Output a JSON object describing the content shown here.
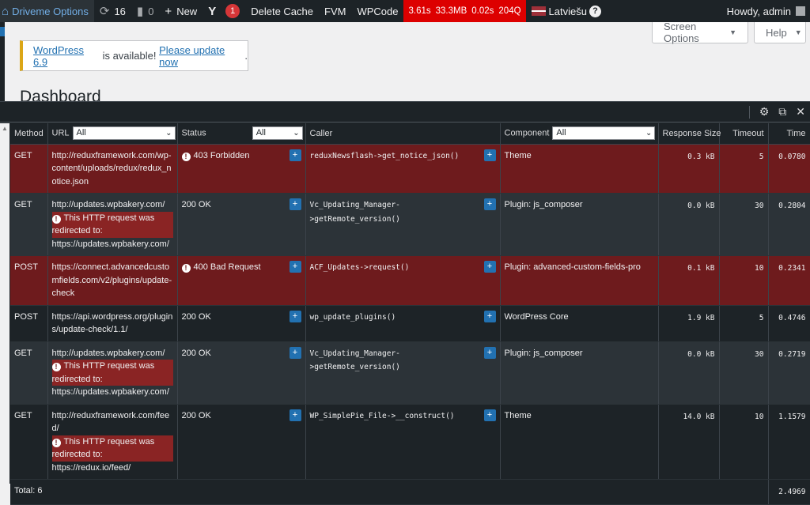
{
  "admin_bar": {
    "site_name": "Driveme Options",
    "updates_count": "16",
    "comments_count": "0",
    "new_label": "New",
    "yoast_badge": "1",
    "delete_cache": "Delete Cache",
    "fvm": "FVM",
    "wpcode": "WPCode",
    "qm_time": "3.61s",
    "qm_memory": "33.3MB",
    "qm_db_time": "0.02s",
    "qm_queries": "204Q",
    "language": "Latviešu",
    "howdy": "Howdy, admin"
  },
  "screen_meta": {
    "screen_options": "Screen Options",
    "help": "Help"
  },
  "notice": {
    "link1": "WordPress 6.9",
    "text": " is available! ",
    "link2": "Please update now",
    "end": "."
  },
  "page_title": "Dashboard",
  "qm": {
    "headers": {
      "method": "Method",
      "url": "URL",
      "status": "Status",
      "caller": "Caller",
      "component": "Component",
      "response_size": "Response Size",
      "timeout": "Timeout",
      "time": "Time"
    },
    "filters": {
      "url": "All",
      "status": "All",
      "component": "All"
    },
    "rows": [
      {
        "method": "GET",
        "url": "http://reduxframework.com/wp-content/uploads/redux/redux_notice.json",
        "redirect": "",
        "status": "403 Forbidden",
        "caller": "reduxNewsflash->get_notice_json()",
        "component": "Theme",
        "size": "0.3 kB",
        "timeout": "5",
        "time": "0.0780"
      },
      {
        "method": "GET",
        "url": "http://updates.wpbakery.com/",
        "redirect": "This HTTP request was redirected to:",
        "redirect_to": "https://updates.wpbakery.com/",
        "status": "200 OK",
        "caller": "Vc_Updating_Manager->getRemote_version()",
        "component": "Plugin: js_composer",
        "size": "0.0 kB",
        "timeout": "30",
        "time": "0.2804"
      },
      {
        "method": "POST",
        "url": "https://connect.advancedcustomfields.com/v2/plugins/update-check",
        "redirect": "",
        "status": "400 Bad Request",
        "caller": "ACF_Updates->request()",
        "component": "Plugin: advanced-custom-fields-pro",
        "size": "0.1 kB",
        "timeout": "10",
        "time": "0.2341"
      },
      {
        "method": "POST",
        "url": "https://api.wordpress.org/plugins/update-check/1.1/",
        "redirect": "",
        "status": "200 OK",
        "caller": "wp_update_plugins()",
        "component": "WordPress Core",
        "size": "1.9 kB",
        "timeout": "5",
        "time": "0.4746"
      },
      {
        "method": "GET",
        "url": "http://updates.wpbakery.com/",
        "redirect": "This HTTP request was redirected to:",
        "redirect_to": "https://updates.wpbakery.com/",
        "status": "200 OK",
        "caller": "Vc_Updating_Manager->getRemote_version()",
        "component": "Plugin: js_composer",
        "size": "0.0 kB",
        "timeout": "30",
        "time": "0.2719"
      },
      {
        "method": "GET",
        "url": "http://reduxframework.com/feed/",
        "redirect": "This HTTP request was redirected to:",
        "redirect_to": "https://redux.io/feed/",
        "status": "200 OK",
        "caller": "WP_SimplePie_File->__construct()",
        "component": "Theme",
        "size": "14.0 kB",
        "timeout": "10",
        "time": "1.1579"
      }
    ],
    "total_label": "Total: 6",
    "total_time": "2.4969"
  }
}
